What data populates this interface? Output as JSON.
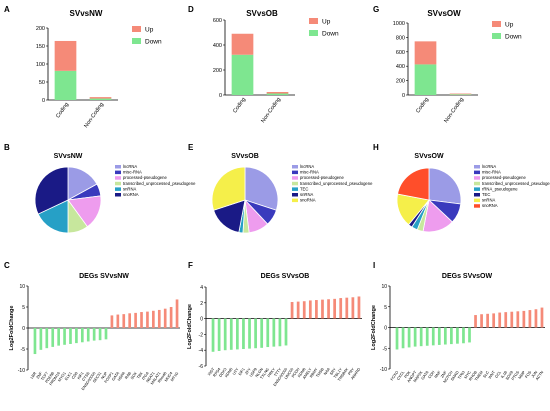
{
  "figure": {
    "colors": {
      "up": "#f58a78",
      "down": "#7ee690",
      "axis": "#000000"
    },
    "pie_colors": [
      "#9b9be6",
      "#3a3abd",
      "#ee9cee",
      "#c7e79d",
      "#26a0c6",
      "#1a1a86",
      "#f5ef4a",
      "#ff4e2a",
      "#26b78a"
    ]
  },
  "chart_data": [
    {
      "panel": "A",
      "type": "bar",
      "stacked": true,
      "title": "SVvsNW",
      "categories": [
        "Coding",
        "Non-Coding"
      ],
      "series": [
        {
          "name": "Up",
          "values": [
            83,
            4
          ]
        },
        {
          "name": "Down",
          "values": [
            81,
            4
          ]
        }
      ],
      "ylim": [
        0,
        200
      ],
      "yticks": [
        "0",
        "50",
        "100",
        "150",
        "200"
      ],
      "legend": "top-right"
    },
    {
      "panel": "D",
      "type": "bar",
      "stacked": true,
      "title": "SVvsOB",
      "categories": [
        "Coding",
        "Non-Coding"
      ],
      "series": [
        {
          "name": "Up",
          "values": [
            168,
            12
          ]
        },
        {
          "name": "Down",
          "values": [
            322,
            12
          ]
        }
      ],
      "ylim": [
        0,
        600
      ],
      "yticks": [
        "0",
        "200",
        "400",
        "600"
      ],
      "legend": "top-right"
    },
    {
      "panel": "G",
      "type": "bar",
      "stacked": true,
      "title": "SVvsOW",
      "categories": [
        "Coding",
        "Non-Coding"
      ],
      "series": [
        {
          "name": "Up",
          "values": [
            320,
            10
          ]
        },
        {
          "name": "Down",
          "values": [
            425,
            10
          ]
        }
      ],
      "ylim": [
        0,
        1000
      ],
      "yticks": [
        "0",
        "200",
        "400",
        "600",
        "800",
        "1000"
      ],
      "legend": "top-right"
    },
    {
      "panel": "B",
      "type": "pie",
      "title": "SVvsNW",
      "labels": [
        "lncRNA",
        "misc-RNA",
        "processed-pseudogene",
        "transcribed_unprocessed_pseudogene",
        "snRNA",
        "snoRNA"
      ],
      "values": [
        17,
        6,
        17,
        10,
        18,
        32
      ]
    },
    {
      "panel": "E",
      "type": "pie",
      "title": "SVvsOB",
      "labels": [
        "lncRNA",
        "misc-RNA",
        "processed-pseudogene",
        "transcribed_unprocessed_pseudogene",
        "TEC",
        "snRNA",
        "snoRNA"
      ],
      "values": [
        30,
        8,
        10,
        3,
        2,
        17,
        30
      ]
    },
    {
      "panel": "H",
      "type": "pie",
      "title": "SVvsOW",
      "labels": [
        "lncRNA",
        "misc-RNA",
        "processed-pseudogene",
        "transcribed_unprocessed_pseudogene",
        "rRNA_pseudogene",
        "TEC",
        "snRNA",
        "snoRNA"
      ],
      "values": [
        27,
        10,
        16,
        3,
        3,
        2,
        17,
        22
      ]
    },
    {
      "panel": "C",
      "type": "bar",
      "title": "DEGs SVvsNW",
      "ylabel": "Log2FoldChange",
      "ylim": [
        -10,
        10
      ],
      "yticks": [
        "-10",
        "-5",
        "0",
        "5",
        "10"
      ],
      "categories": [
        "LBR",
        "ZNF",
        "TCF7",
        "PDE6B",
        "PRDM16",
        "MYO1",
        "ELK1",
        "CD8",
        "KIF1",
        "CTSS",
        "ENSG00000",
        "SEC31",
        "NUP",
        "FOXP1",
        "GATA",
        "HSPA",
        "RAB",
        "SOX",
        "TBX",
        "ITGA",
        "NEAT1",
        "MALAT1",
        "Rbm48",
        "MUC4",
        "MT1G"
      ],
      "values": [
        -6.2,
        -5.2,
        -4.8,
        -4.5,
        -4.2,
        -4.0,
        -3.8,
        -3.6,
        -3.4,
        -3.2,
        -3.0,
        -2.9,
        -2.7,
        3.0,
        3.2,
        3.3,
        3.5,
        3.6,
        3.8,
        3.9,
        4.1,
        4.3,
        4.6,
        5.0,
        6.8
      ]
    },
    {
      "panel": "F",
      "type": "bar",
      "title": "DEGs SVvsOB",
      "ylabel": "Log2FoldChange",
      "ylim": [
        -6,
        4
      ],
      "yticks": [
        "-6",
        "-4",
        "-2",
        "0",
        "2",
        "4"
      ],
      "categories": [
        "XIST",
        "RPS4",
        "DDX3",
        "KDM5",
        "UTY",
        "EIF1",
        "ZFY",
        "USP9",
        "NLGN",
        "TXLNG",
        "PRKY",
        "TTTY",
        "ENSG00000",
        "LINC00",
        "PCDH",
        "KDM6",
        "AMELY",
        "RBMY",
        "TMSB",
        "NAA",
        "SRY",
        "TBL1Y",
        "TMSB4X",
        "PRY",
        "ANKRD"
      ],
      "values": [
        -4.2,
        -4.1,
        -4.0,
        -3.95,
        -3.9,
        -3.85,
        -3.8,
        -3.75,
        -3.7,
        -3.6,
        -3.55,
        -3.5,
        -3.4,
        2.1,
        2.15,
        2.2,
        2.3,
        2.35,
        2.4,
        2.45,
        2.5,
        2.6,
        2.65,
        2.7,
        2.8
      ]
    },
    {
      "panel": "I",
      "type": "bar",
      "title": "DEGs SVvsOW",
      "ylabel": "Log2FoldChange",
      "ylim": [
        -10,
        10
      ],
      "yticks": [
        "-10",
        "-5",
        "0",
        "5",
        "10"
      ],
      "categories": [
        "FOXO",
        "CXCL",
        "PDK",
        "ANGPT",
        "MAP2K",
        "GATA",
        "CDH",
        "RNF",
        "ZNF",
        "NOTCH",
        "SMAD",
        "TP63",
        "MYC",
        "RHOB",
        "TMEM",
        "SLC",
        "WNT",
        "CCL",
        "IL1B",
        "SOX9",
        "PTGS",
        "MMP",
        "FOS",
        "JUN",
        "ACTN"
      ],
      "values": [
        -5.3,
        -5.0,
        -4.8,
        -4.6,
        -4.5,
        -4.4,
        -4.3,
        -4.2,
        -4.1,
        -4.0,
        -3.9,
        -3.8,
        -3.6,
        3.0,
        3.2,
        3.3,
        3.4,
        3.6,
        3.7,
        3.8,
        3.9,
        4.0,
        4.2,
        4.4,
        4.8
      ]
    }
  ]
}
